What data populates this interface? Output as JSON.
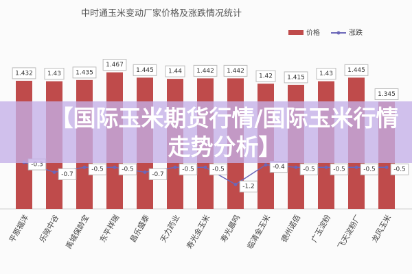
{
  "chart_data": {
    "type": "bar_line",
    "title": "中时通玉米变动厂家价格及涨跌情况统计",
    "categories": [
      "平原福洋",
      "乐陵中谷",
      "禹城保龄宝",
      "东平祥瑞",
      "昌乐盛泰",
      "天力药业",
      "寿光金玉米",
      "寿光晨鸣",
      "临清金玉米",
      "德州诺佰",
      "广玉淀粉",
      "飞天淀粉厂",
      "龙风玉米"
    ],
    "series": [
      {
        "name": "价格",
        "color": "#bf4b4b",
        "values": [
          1.432,
          1.43,
          1.435,
          1.467,
          1.445,
          1.44,
          1.442,
          1.442,
          1.42,
          1.415,
          1.43,
          1.445,
          1.345
        ]
      },
      {
        "name": "涨跌",
        "color": "#6b67b8",
        "axis": "y2",
        "values": [
          -0.3,
          -0.7,
          -0.5,
          -0.5,
          -0.7,
          -0.5,
          -0.5,
          -1.2,
          -0.4,
          -0.5,
          -0.5,
          -0.5,
          -0.5
        ]
      }
    ],
    "ylim": [
      0.9,
      1.5
    ],
    "y2lim": [
      -2.2,
      3.7
    ],
    "legend": "top-right"
  },
  "banner": "【国际玉米期货行情/国际玉米行情走势分析】"
}
